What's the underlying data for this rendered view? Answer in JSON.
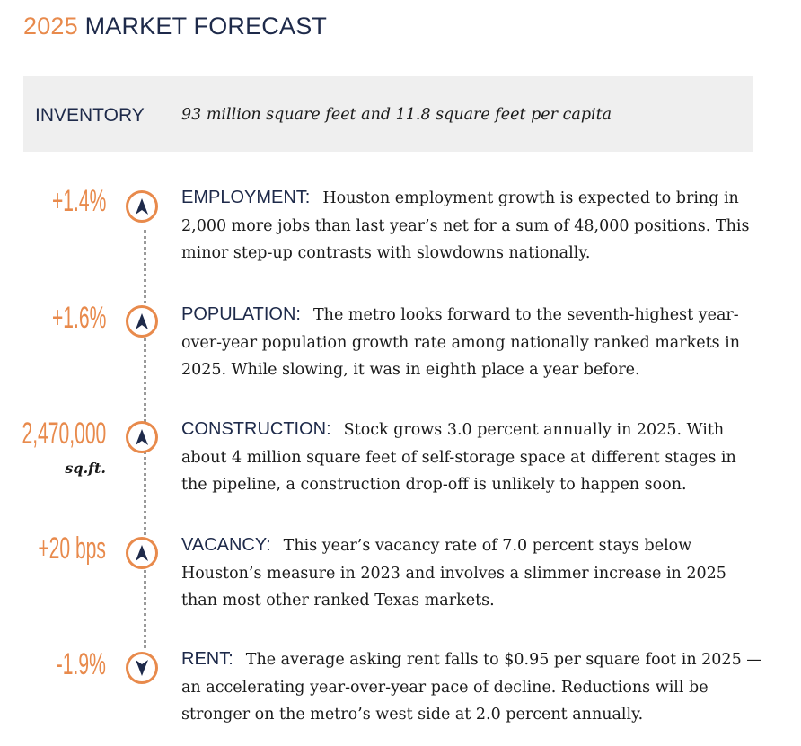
{
  "header": {
    "year": "2025",
    "title": "MARKET FORECAST"
  },
  "inventory": {
    "label": "INVENTORY",
    "value": "93 million square feet and 11.8 square feet per capita"
  },
  "items": [
    {
      "stat": "+1.4%",
      "direction": "up",
      "label": "EMPLOYMENT:",
      "text": "Houston employment growth is expected to bring in 2,000 more jobs than last year’s net for a sum of 48,000 positions. This minor step-up contrasts with slowdowns nationally."
    },
    {
      "stat": "+1.6%",
      "direction": "up",
      "label": "POPULATION:",
      "text": "The metro looks forward to the seventh-highest year-over-year population growth rate among nationally ranked markets in 2025. While slowing, it was in eighth place a year before."
    },
    {
      "stat": "2,470,000",
      "unit": "sq.ft.",
      "direction": "up",
      "label": "CONSTRUCTION:",
      "text": "Stock grows 3.0 percent annually in 2025. With about 4 million square feet of self-storage space at different stages in the pipeline, a construction drop-off is unlikely to happen soon."
    },
    {
      "stat": "+20 bps",
      "direction": "up",
      "label": "VACANCY:",
      "text": "This year’s vacancy rate of 7.0 percent stays below Houston’s measure in 2023 and involves a slimmer increase in 2025 than most other ranked Texas markets."
    },
    {
      "stat": "-1.9%",
      "direction": "down",
      "label": "RENT:",
      "text": "The average asking rent falls to $0.95 per square foot in 2025 — an accelerating year-over-year pace of decline. Reductions will be stronger on the metro’s west side at 2.0 percent annually."
    }
  ],
  "colors": {
    "accent": "#e88a4c",
    "navy": "#1e2a4a",
    "panel": "#efefef"
  }
}
